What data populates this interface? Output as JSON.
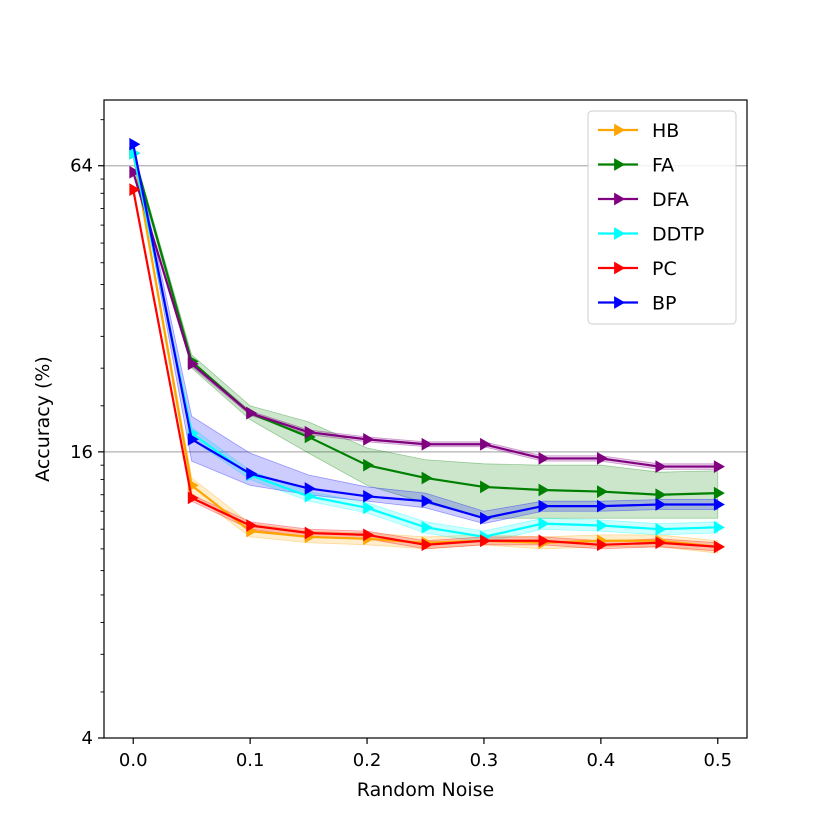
{
  "chart_data": {
    "type": "line",
    "title": "",
    "xlabel": "Random Noise",
    "ylabel": "Accuracy (%)",
    "y_scale": "log2",
    "xlim": [
      -0.025,
      0.525
    ],
    "ylim": [
      4,
      88
    ],
    "x_ticks": [
      0.0,
      0.1,
      0.2,
      0.3,
      0.4,
      0.5
    ],
    "x_tick_labels": [
      "0.0",
      "0.1",
      "0.2",
      "0.3",
      "0.4",
      "0.5"
    ],
    "y_ticks": [
      4,
      16,
      64
    ],
    "y_tick_labels": [
      "4",
      "16",
      "64"
    ],
    "horizontal_grid_at": [
      16,
      64
    ],
    "legend_position": "top-right",
    "x": [
      0.0,
      0.05,
      0.1,
      0.15,
      0.2,
      0.25,
      0.3,
      0.35,
      0.4,
      0.45,
      0.5
    ],
    "series": [
      {
        "name": "HB",
        "color": "#FFA500",
        "values": [
          68,
          13.6,
          10.9,
          10.6,
          10.5,
          10.3,
          10.4,
          10.3,
          10.4,
          10.4,
          10.1
        ],
        "band_lower": [
          67,
          13.1,
          10.6,
          10.3,
          10.2,
          10.0,
          10.2,
          10.0,
          10.1,
          10.1,
          9.8
        ],
        "band_upper": [
          69,
          14.1,
          11.3,
          10.9,
          10.8,
          10.6,
          10.7,
          10.6,
          10.7,
          10.7,
          10.4
        ]
      },
      {
        "name": "FA",
        "color": "#008000",
        "values": [
          68,
          24.8,
          19.3,
          17.2,
          15.0,
          14.1,
          13.5,
          13.3,
          13.2,
          13.0,
          13.1
        ],
        "band_lower": [
          67,
          24.0,
          18.7,
          15.9,
          13.6,
          12.5,
          11.6,
          11.6,
          11.6,
          11.6,
          11.6
        ],
        "band_upper": [
          69,
          25.6,
          20.0,
          18.5,
          16.3,
          15.4,
          15.1,
          15.0,
          15.0,
          14.5,
          14.6
        ]
      },
      {
        "name": "DFA",
        "color": "#800080",
        "values": [
          62,
          24.5,
          19.3,
          17.6,
          17.0,
          16.6,
          16.6,
          15.5,
          15.5,
          14.9,
          14.9
        ],
        "band_lower": [
          61.5,
          24.2,
          19.1,
          17.4,
          16.8,
          16.4,
          16.4,
          15.3,
          15.3,
          14.7,
          14.7
        ],
        "band_upper": [
          62.5,
          24.8,
          19.5,
          17.8,
          17.2,
          16.8,
          16.8,
          15.7,
          15.7,
          15.1,
          15.1
        ]
      },
      {
        "name": "DDTP",
        "color": "#00FFFF",
        "values": [
          68,
          17.5,
          14.3,
          12.9,
          12.2,
          11.1,
          10.6,
          11.3,
          11.2,
          11.0,
          11.1
        ],
        "band_lower": [
          67,
          17.0,
          14.0,
          12.6,
          11.9,
          10.8,
          10.3,
          11.0,
          10.9,
          10.7,
          10.8
        ],
        "band_upper": [
          69,
          18.0,
          14.6,
          13.2,
          12.5,
          11.4,
          10.9,
          11.6,
          11.5,
          11.3,
          11.4
        ]
      },
      {
        "name": "PC",
        "color": "#FF0000",
        "values": [
          57,
          12.8,
          11.2,
          10.8,
          10.7,
          10.2,
          10.4,
          10.4,
          10.2,
          10.3,
          10.1
        ],
        "band_lower": [
          56.5,
          12.6,
          11.0,
          10.6,
          10.5,
          10.0,
          10.2,
          10.2,
          10.0,
          10.1,
          9.9
        ],
        "band_upper": [
          57.5,
          13.0,
          11.4,
          11.0,
          10.9,
          10.4,
          10.6,
          10.6,
          10.4,
          10.5,
          10.3
        ]
      },
      {
        "name": "BP",
        "color": "#0000FF",
        "values": [
          71,
          17.0,
          14.4,
          13.4,
          12.9,
          12.6,
          11.6,
          12.3,
          12.3,
          12.4,
          12.4
        ],
        "band_lower": [
          70.5,
          15.3,
          13.6,
          13.0,
          12.6,
          12.2,
          11.3,
          12.0,
          12.0,
          12.1,
          12.1
        ],
        "band_upper": [
          71.5,
          19.0,
          15.9,
          14.3,
          13.5,
          13.1,
          12.0,
          12.6,
          12.6,
          12.7,
          12.7
        ]
      }
    ]
  }
}
